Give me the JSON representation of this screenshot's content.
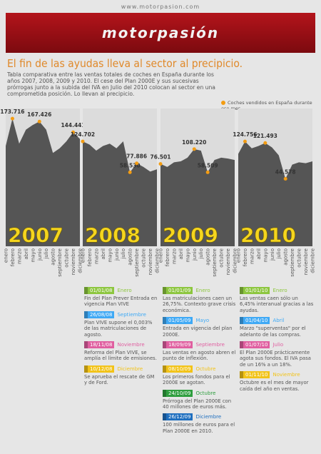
{
  "header": {
    "site": "www.motorpasion.com",
    "logo": "motorpasión",
    "title": "El fin de las ayudas lleva al sector al precipicio.",
    "subtitle": "Tabla comparativa entre las ventas totales de coches en España durante los años 2007, 2008, 2009 y 2010. El cese del Plan 2000E y sus sucesivas prórrogas junto a la subida del IVA en Julio del 2010 colocan al sector en una comprometida posición. Lo llevan al precipicio.",
    "legend": "Coches vendidos en España durante ese mes.",
    "legend_color": "#f39c12"
  },
  "chart_data": [
    {
      "type": "area",
      "title": "2007",
      "color": "#555555",
      "marker_color": "#f39c12",
      "ylim": [
        -100000,
        180000
      ],
      "categories": [
        "enero",
        "febrero",
        "marzo",
        "abril",
        "mayo",
        "junio",
        "julio",
        "agosto",
        "septiembre",
        "octubre",
        "noviembre",
        "diciembre"
      ],
      "values": [
        115000,
        173716,
        120000,
        150000,
        160000,
        167426,
        150000,
        100000,
        110000,
        125000,
        144441,
        130000
      ],
      "value_labels": [
        null,
        "173.716",
        null,
        null,
        null,
        "167.426",
        null,
        null,
        null,
        null,
        "144.441",
        null
      ]
    },
    {
      "type": "area",
      "title": "2008",
      "color": "#555555",
      "marker_color": "#f39c12",
      "ylim": [
        -100000,
        180000
      ],
      "categories": [
        "enero",
        "febrero",
        "marzo",
        "abril",
        "mayo",
        "junio",
        "julio",
        "agosto",
        "septiembre",
        "octubre",
        "noviembre",
        "diciembre"
      ],
      "values": [
        124702,
        118000,
        105000,
        115000,
        120000,
        110000,
        125000,
        58530,
        77886,
        70000,
        60000,
        65000
      ],
      "value_labels": [
        "124.702",
        null,
        null,
        null,
        null,
        null,
        null,
        "58.530",
        "77.886",
        null,
        null,
        null
      ]
    },
    {
      "type": "area",
      "title": "2009",
      "color": "#555555",
      "marker_color": "#f39c12",
      "ylim": [
        -100000,
        180000
      ],
      "categories": [
        "enero",
        "febrero",
        "marzo",
        "abril",
        "mayo",
        "junio",
        "julio",
        "agosto",
        "septiembre",
        "octubre",
        "noviembre",
        "diciembre"
      ],
      "values": [
        76501,
        70000,
        80000,
        82000,
        90000,
        108220,
        105000,
        58509,
        85000,
        90000,
        88000,
        85000
      ],
      "value_labels": [
        "76.501",
        null,
        null,
        null,
        null,
        "108.220",
        null,
        "58.509",
        null,
        null,
        null,
        null
      ]
    },
    {
      "type": "area",
      "title": "2010",
      "color": "#555555",
      "marker_color": "#f39c12",
      "ylim": [
        -100000,
        180000
      ],
      "categories": [
        "enero",
        "febrero",
        "marzo",
        "abril",
        "mayo",
        "junio",
        "julio",
        "agosto",
        "septiembre",
        "octubre",
        "noviembre",
        "diciembre"
      ],
      "values": [
        98000,
        124756,
        110000,
        115000,
        121493,
        112000,
        95000,
        44578,
        75000,
        80000,
        78000,
        82000
      ],
      "value_labels": [
        null,
        "124.756",
        null,
        null,
        "121.493",
        null,
        null,
        "44.578",
        null,
        null,
        null,
        null
      ]
    }
  ],
  "events": [
    [
      {
        "date": "01/01/08",
        "month": "Enero",
        "color": "#8dc63f",
        "text": "Fin del Plan Prever Entrada en vigencia Plan VIVE"
      },
      {
        "date": "26/08/08",
        "month": "Septiembre",
        "color": "#3fa9f5",
        "text": "Plan VIVE supone el 0,003% de las matriculaciones de agosto."
      },
      {
        "date": "18/11/08",
        "month": "Noviembre",
        "color": "#e05fa0",
        "text": "Reforma del Plan VIVE, se amplía el límite de emisiones."
      },
      {
        "date": "10/12/08",
        "month": "Diciembre",
        "color": "#f2c318",
        "text": "Se aprueba el rescate de GM y de Ford."
      }
    ],
    [
      {
        "date": "01/01/09",
        "month": "Enero",
        "color": "#8dc63f",
        "text": "Las matriculaciones caen un 26,75%. Contexto grave crisis económica."
      },
      {
        "date": "01/05/09",
        "month": "Mayo",
        "color": "#3fa9f5",
        "text": "Entrada en vigencia del plan 2000E."
      },
      {
        "date": "18/09/09",
        "month": "Septiembre",
        "color": "#e05fa0",
        "text": "Las ventas en agosto abren el punto de inflexión."
      },
      {
        "date": "08/10/09",
        "month": "Octubre",
        "color": "#f2c318",
        "text": "Los primeros fondos para el 2000E se agotan."
      },
      {
        "date": "24/10/09",
        "month": "Octubre",
        "color": "#2e9e3e",
        "text": "Prórroga del Plan 2000E con 40 millones de euros más."
      },
      {
        "date": "26/12/09",
        "month": "Diciembre",
        "color": "#1f6fbf",
        "text": "100 millones de euros para el Plan 2000E en 2010."
      }
    ],
    [
      {
        "date": "01/01/10",
        "month": "Enero",
        "color": "#8dc63f",
        "text": "Las ventas caen sólo un 6,45% interanual gracias a las ayudas."
      },
      {
        "date": "01/04/10",
        "month": "Abril",
        "color": "#3fa9f5",
        "text": "Marzo \"superventas\" por el adelanto de las compras."
      },
      {
        "date": "01/07/10",
        "month": "Julio",
        "color": "#e05fa0",
        "text": "El Plan 2000E prácticamente agota sus fondos. El IVA pasa de un 16% a un 18%."
      },
      {
        "date": "01/11/10",
        "month": "Noviembre",
        "color": "#f2c318",
        "text": "Octubre es el mes de mayor caída del año en ventas."
      }
    ]
  ]
}
